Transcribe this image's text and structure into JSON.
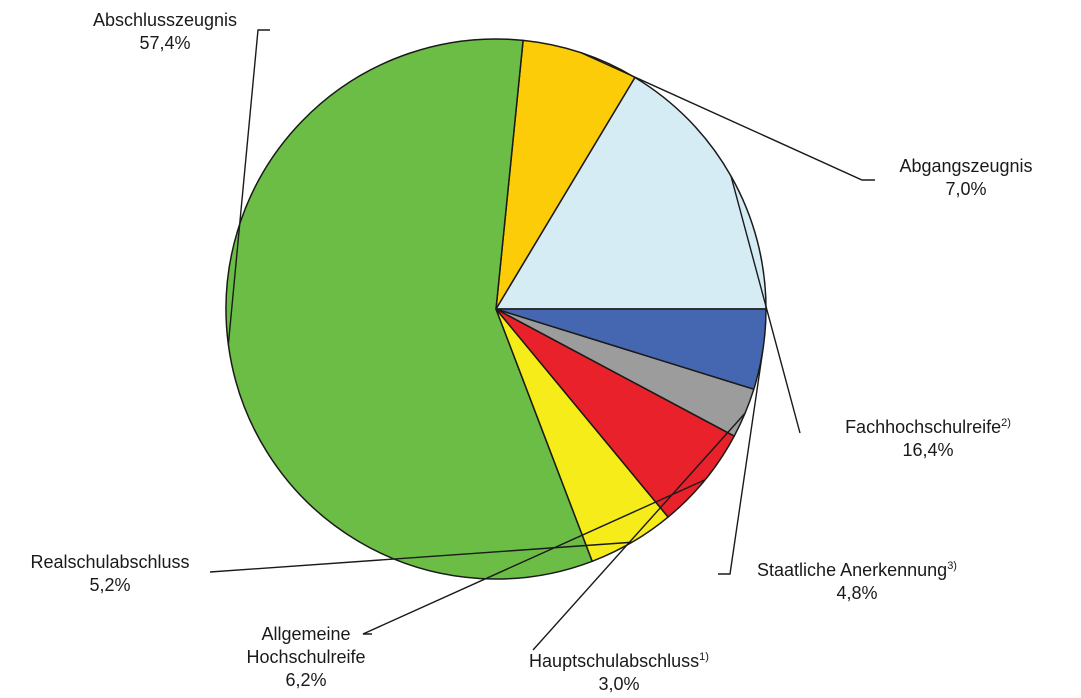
{
  "chart_data": {
    "type": "pie",
    "start_angle_deg": 0,
    "direction": "counterclockwise",
    "slices": [
      {
        "label": "Fachhochschulreife",
        "footnote": "2)",
        "value": 16.4,
        "value_label": "16,4%",
        "color": "#d6ecf4"
      },
      {
        "label": "Abgangszeugnis",
        "footnote": "",
        "value": 7.0,
        "value_label": "7,0%",
        "color": "#fdcc08"
      },
      {
        "label": "Abschlusszeugnis",
        "footnote": "",
        "value": 57.4,
        "value_label": "57,4%",
        "color": "#6cbd45"
      },
      {
        "label": "Realschulabschluss",
        "footnote": "",
        "value": 5.2,
        "value_label": "5,2%",
        "color": "#f5ec19"
      },
      {
        "label": "Allgemeine Hochschulreife",
        "label_lines": [
          "Allgemeine",
          "Hochschulreife"
        ],
        "footnote": "",
        "value": 6.2,
        "value_label": "6,2%",
        "color": "#e8212a"
      },
      {
        "label": "Hauptschulabschluss",
        "footnote": "1)",
        "value": 3.0,
        "value_label": "3,0%",
        "color": "#9c9c9c"
      },
      {
        "label": "Staatliche Anerkennung",
        "footnote": "3)",
        "value": 4.8,
        "value_label": "4,8%",
        "color": "#4566b0"
      }
    ]
  }
}
